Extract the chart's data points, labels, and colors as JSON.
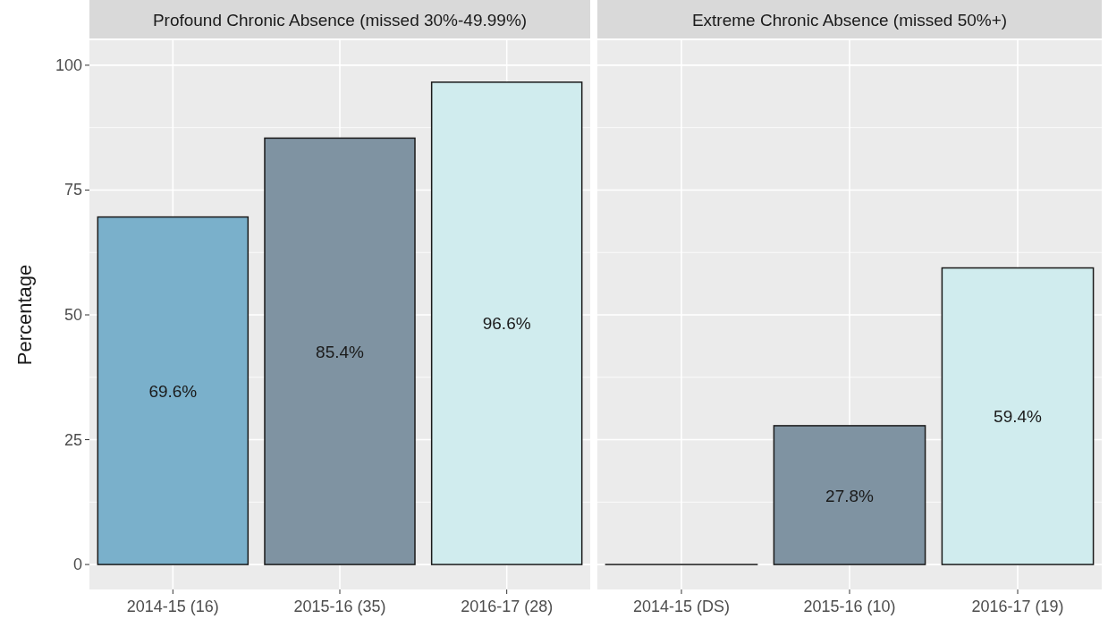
{
  "chart_data": [
    {
      "type": "bar",
      "title": "Profound Chronic Absence (missed 30%-49.99%)",
      "ylabel": "Percentage",
      "categories": [
        "2014-15 (16)",
        "2015-16 (35)",
        "2016-17 (28)"
      ],
      "values": [
        69.6,
        85.4,
        96.6
      ],
      "colors": [
        "#7ab0cb",
        "#7f93a2",
        "#d0ecee"
      ],
      "value_labels": [
        "69.6%",
        "85.4%",
        "96.6%"
      ],
      "ylim": [
        -5,
        105
      ],
      "yticks": [
        0,
        25,
        50,
        75,
        100
      ],
      "grid": true
    },
    {
      "type": "bar",
      "title": "Extreme Chronic Absence (missed 50%+)",
      "categories": [
        "2014-15 (DS)",
        "2015-16 (10)",
        "2016-17 (19)"
      ],
      "values": [
        0,
        27.8,
        59.4
      ],
      "colors": [
        "#7ab0cb",
        "#7f93a2",
        "#d0ecee"
      ],
      "value_labels": [
        null,
        "27.8%",
        "59.4%"
      ],
      "ylim": [
        -5,
        105
      ],
      "yticks": [
        0,
        25,
        50,
        75,
        100
      ],
      "grid": true,
      "tick_labels": "x"
    }
  ]
}
